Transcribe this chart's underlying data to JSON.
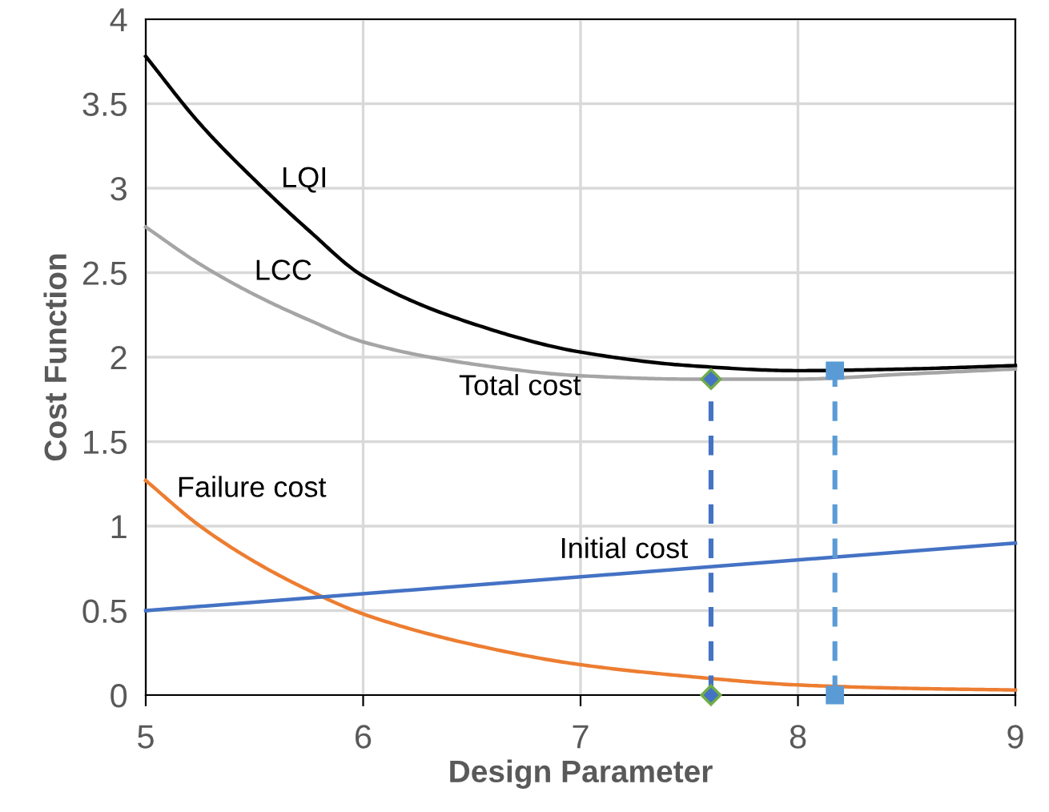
{
  "chart_data": {
    "type": "line",
    "xlabel": "Design Parameter",
    "ylabel": "Cost Function",
    "xlim": [
      5,
      9
    ],
    "xticks": [
      5,
      6,
      7,
      8,
      9
    ],
    "ylim": [
      0,
      4
    ],
    "yticks": [
      0,
      0.5,
      1,
      1.5,
      2,
      2.5,
      3,
      3.5,
      4
    ],
    "grid": true,
    "series": [
      {
        "name": "LQI",
        "color": "#000000",
        "x": [
          5,
          5.25,
          5.5,
          5.75,
          6,
          6.5,
          7,
          7.5,
          8,
          8.5,
          9
        ],
        "values": [
          3.78,
          3.38,
          3.05,
          2.75,
          2.48,
          2.2,
          2.03,
          1.95,
          1.92,
          1.93,
          1.95
        ],
        "marker": "none",
        "line_style": "solid"
      },
      {
        "name": "LCC",
        "color": "#a5a5a5",
        "x": [
          5,
          5.25,
          5.5,
          5.75,
          6,
          6.5,
          7,
          7.5,
          8,
          8.5,
          9
        ],
        "values": [
          2.77,
          2.55,
          2.37,
          2.22,
          2.09,
          1.96,
          1.89,
          1.87,
          1.87,
          1.9,
          1.93
        ],
        "marker": "none",
        "line_style": "solid"
      },
      {
        "name": "Failure cost",
        "color": "#ed7d31",
        "x": [
          5,
          5.25,
          5.5,
          5.75,
          6,
          6.5,
          7,
          7.5,
          8,
          8.5,
          9
        ],
        "values": [
          1.27,
          1.0,
          0.79,
          0.62,
          0.48,
          0.3,
          0.18,
          0.11,
          0.06,
          0.04,
          0.03
        ],
        "marker": "none",
        "line_style": "solid"
      },
      {
        "name": "Initial cost",
        "color": "#4472c4",
        "x": [
          5,
          9
        ],
        "values": [
          0.5,
          0.9
        ],
        "marker": "none",
        "line_style": "solid"
      },
      {
        "color": "#4472c4",
        "x": [
          7.6,
          7.6
        ],
        "values": [
          0,
          1.87
        ],
        "marker": "diamond",
        "line_style": "dashed"
      },
      {
        "color": "#5b9bd5",
        "x": [
          8.17,
          8.17
        ],
        "values": [
          0,
          1.92
        ],
        "marker": "square",
        "line_style": "dashed"
      }
    ],
    "annotations": [
      "Total cost"
    ]
  }
}
